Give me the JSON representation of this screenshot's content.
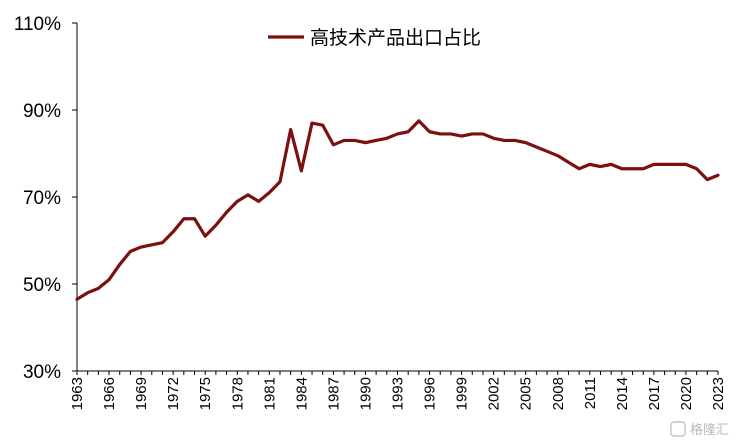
{
  "chart_data": {
    "type": "line",
    "title": "",
    "xlabel": "",
    "ylabel": "",
    "ylim": [
      30,
      110
    ],
    "y_ticks": [
      "110%",
      "90%",
      "70%",
      "50%",
      "30%"
    ],
    "y_tick_values": [
      110,
      90,
      70,
      50,
      30
    ],
    "x_tick_labels": [
      "1963",
      "1966",
      "1969",
      "1972",
      "1975",
      "1978",
      "1981",
      "1984",
      "1987",
      "1990",
      "1993",
      "1996",
      "1999",
      "2002",
      "2005",
      "2008",
      "2011",
      "2014",
      "2017",
      "2020",
      "2023"
    ],
    "grid": false,
    "legend_position": "top-center",
    "series": [
      {
        "name": "高技术产品出口占比",
        "color": "#7b1010",
        "x": [
          1963,
          1964,
          1965,
          1966,
          1967,
          1968,
          1969,
          1970,
          1971,
          1972,
          1973,
          1974,
          1975,
          1976,
          1977,
          1978,
          1979,
          1980,
          1981,
          1982,
          1983,
          1984,
          1985,
          1986,
          1987,
          1988,
          1989,
          1990,
          1991,
          1992,
          1993,
          1994,
          1995,
          1996,
          1997,
          1998,
          1999,
          2000,
          2001,
          2002,
          2003,
          2004,
          2005,
          2006,
          2007,
          2008,
          2009,
          2010,
          2011,
          2012,
          2013,
          2014,
          2015,
          2016,
          2017,
          2018,
          2019,
          2020,
          2021,
          2022,
          2023
        ],
        "values": [
          46.5,
          48,
          49,
          51,
          54.5,
          57.5,
          58.5,
          59,
          59.5,
          62,
          65,
          65,
          61,
          63.5,
          66.5,
          69,
          70.5,
          69,
          71,
          73.5,
          85.5,
          76,
          87,
          86.5,
          82,
          83,
          83,
          82.5,
          83,
          83.5,
          84.5,
          85,
          87.5,
          85,
          84.5,
          84.5,
          84,
          84.5,
          84.5,
          83.5,
          83,
          83,
          82.5,
          81.5,
          80.5,
          79.5,
          78,
          76.5,
          77.5,
          77,
          77.5,
          76.5,
          76.5,
          76.5,
          77.5,
          77.5,
          77.5,
          77.5,
          76.5,
          74,
          75
        ]
      }
    ]
  },
  "watermark": "格隆汇"
}
